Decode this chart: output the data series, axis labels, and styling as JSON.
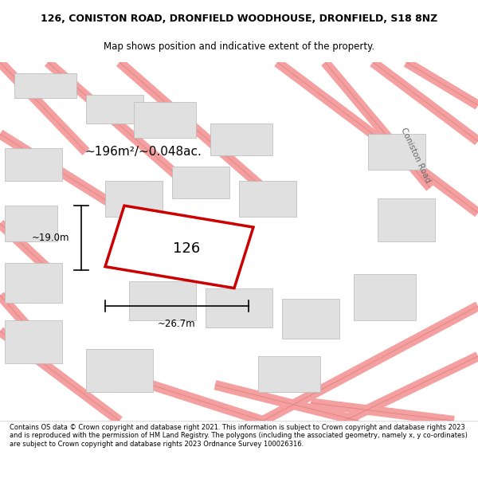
{
  "title_line1": "126, CONISTON ROAD, DRONFIELD WOODHOUSE, DRONFIELD, S18 8NZ",
  "title_line2": "Map shows position and indicative extent of the property.",
  "footer_text": "Contains OS data © Crown copyright and database right 2021. This information is subject to Crown copyright and database rights 2023 and is reproduced with the permission of HM Land Registry. The polygons (including the associated geometry, namely x, y co-ordinates) are subject to Crown copyright and database rights 2023 Ordnance Survey 100026316.",
  "area_label": "~196m²/~0.048ac.",
  "number_label": "126",
  "dim_height": "~19.0m",
  "dim_width": "~26.7m",
  "road_label": "Coniston Road",
  "map_bg": "#ffffff",
  "plot_color_fill": "#ffffff",
  "plot_color_edge": "#cc0000",
  "building_fill": "#e0e0e0",
  "building_edge": "#b8b8b8",
  "road_color": "#f5a0a0",
  "road_line_color": "#e08080",
  "title_bg": "#ffffff",
  "footer_bg": "#ffffff"
}
